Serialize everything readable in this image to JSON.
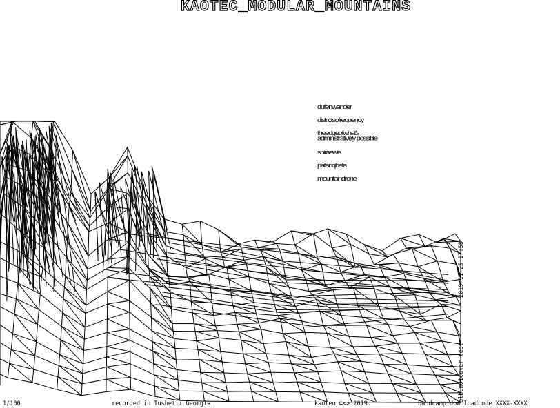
{
  "title": "KAOTEC_MODULAR_MOUNTAINS",
  "tracklist": [
    "dufenwander",
    "districtsofrequency",
    "theedgeofwhat's administratively possible",
    "shiraewe",
    "patanqbeta",
    "mountaindrone"
  ],
  "side_text": {
    "timestamp": "2019-11-25 17:58",
    "cover_label": "album01cover test"
  },
  "footer": {
    "page": "1/100",
    "recorded": "recorded in Tushetii Georgia",
    "artist": "kaoteo ⊑<> 2019",
    "bandcamp": "bandcamp downloadcode XXXX-XXXX"
  },
  "colors": {
    "background": "#ffffff",
    "ink": "#000000"
  }
}
